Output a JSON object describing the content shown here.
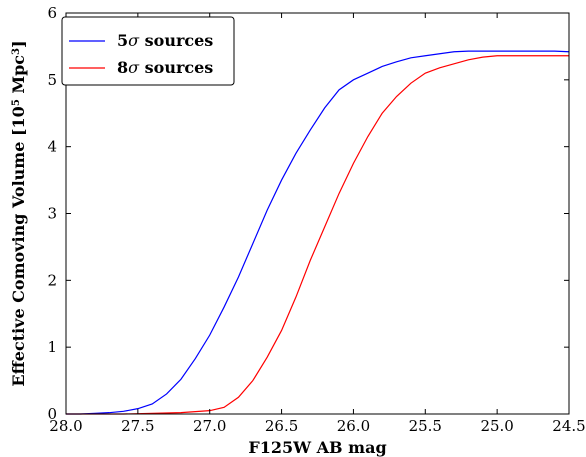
{
  "chart_data": {
    "type": "line",
    "xlabel": "F125W AB mag",
    "ylabel_main": "Effective Comoving Volume [10",
    "ylabel_exp1": "5",
    "ylabel_mid": " Mpc",
    "ylabel_exp2": "3",
    "ylabel_end": "]",
    "xlim": [
      28.0,
      24.5
    ],
    "ylim": [
      0,
      6
    ],
    "x_inverted": true,
    "xticks": [
      28.0,
      27.5,
      27.0,
      26.5,
      26.0,
      25.5,
      25.0,
      24.5
    ],
    "xtick_labels": [
      "28.0",
      "27.5",
      "27.0",
      "26.5",
      "26.0",
      "25.5",
      "25.0",
      "24.5"
    ],
    "yticks": [
      0,
      1,
      2,
      3,
      4,
      5,
      6
    ],
    "ytick_labels": [
      "0",
      "1",
      "2",
      "3",
      "4",
      "5",
      "6"
    ],
    "legend_position": "top-left",
    "grid": false,
    "series": [
      {
        "name": "5σ sources",
        "legend_num": "5",
        "legend_sigma": "σ",
        "legend_rest": " sources",
        "color": "#0000ff",
        "x": [
          28.0,
          27.9,
          27.8,
          27.7,
          27.6,
          27.5,
          27.4,
          27.3,
          27.2,
          27.1,
          27.0,
          26.9,
          26.8,
          26.7,
          26.6,
          26.5,
          26.4,
          26.3,
          26.2,
          26.1,
          26.0,
          25.9,
          25.8,
          25.7,
          25.6,
          25.5,
          25.4,
          25.3,
          25.2,
          25.1,
          25.0,
          24.9,
          24.8,
          24.7,
          24.6,
          24.5
        ],
        "y": [
          0.0,
          0.0,
          0.01,
          0.02,
          0.04,
          0.08,
          0.15,
          0.3,
          0.52,
          0.83,
          1.18,
          1.6,
          2.05,
          2.55,
          3.05,
          3.5,
          3.9,
          4.25,
          4.58,
          4.85,
          5.0,
          5.1,
          5.2,
          5.27,
          5.33,
          5.36,
          5.39,
          5.42,
          5.43,
          5.43,
          5.43,
          5.43,
          5.43,
          5.43,
          5.43,
          5.42
        ]
      },
      {
        "name": "8σ sources",
        "legend_num": "8",
        "legend_sigma": "σ",
        "legend_rest": " sources",
        "color": "#ff0000",
        "x": [
          28.0,
          27.6,
          27.4,
          27.2,
          27.0,
          26.9,
          26.8,
          26.7,
          26.6,
          26.5,
          26.4,
          26.3,
          26.2,
          26.1,
          26.0,
          25.9,
          25.8,
          25.7,
          25.6,
          25.5,
          25.4,
          25.3,
          25.2,
          25.1,
          25.0,
          24.9,
          24.8,
          24.7,
          24.6,
          24.5
        ],
        "y": [
          0.0,
          0.0,
          0.01,
          0.02,
          0.05,
          0.1,
          0.25,
          0.5,
          0.85,
          1.25,
          1.75,
          2.3,
          2.8,
          3.3,
          3.75,
          4.15,
          4.5,
          4.75,
          4.95,
          5.1,
          5.18,
          5.24,
          5.3,
          5.34,
          5.36,
          5.36,
          5.36,
          5.36,
          5.36,
          5.36
        ]
      }
    ]
  }
}
